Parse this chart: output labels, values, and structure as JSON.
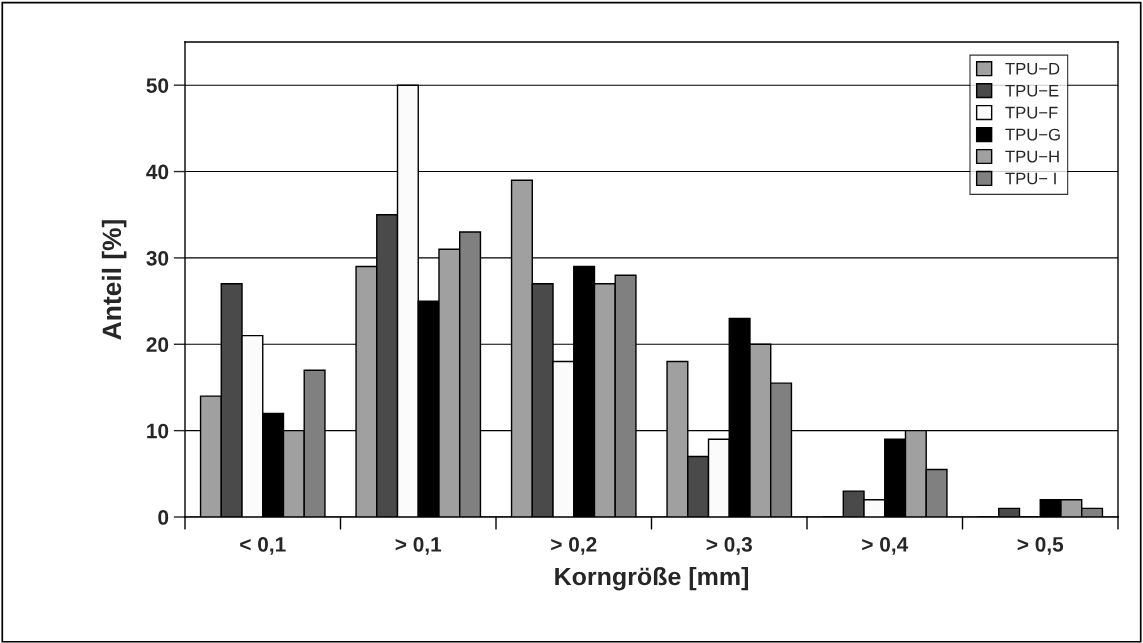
{
  "chart_data": {
    "type": "bar",
    "xlabel": "Korngröße [mm]",
    "ylabel": "Anteil [%]",
    "categories": [
      "< 0,1",
      "> 0,1",
      "> 0,2",
      "> 0,3",
      "> 0,4",
      "> 0,5"
    ],
    "series": [
      {
        "name": "TPU−D",
        "color": "#a0a0a0",
        "values": [
          14,
          29,
          39,
          18,
          0,
          0
        ]
      },
      {
        "name": "TPU−E",
        "color": "#4a4a4a",
        "values": [
          27,
          35,
          27,
          7,
          3,
          1
        ]
      },
      {
        "name": "TPU−F",
        "color": "#fbfbfb",
        "values": [
          21,
          50,
          18,
          9,
          2,
          0
        ]
      },
      {
        "name": "TPU−G",
        "color": "#000000",
        "values": [
          12,
          25,
          29,
          23,
          9,
          2
        ]
      },
      {
        "name": "TPU−H",
        "color": "#a0a0a0",
        "values": [
          10,
          31,
          27,
          20,
          10,
          2
        ]
      },
      {
        "name": "TPU− I",
        "color": "#808080",
        "values": [
          17,
          33,
          28,
          15.5,
          5.5,
          1
        ]
      }
    ],
    "ylim": [
      0,
      55
    ],
    "yticks": [
      0,
      10,
      20,
      30,
      40,
      50
    ],
    "grid": "y",
    "legend": "top right"
  }
}
